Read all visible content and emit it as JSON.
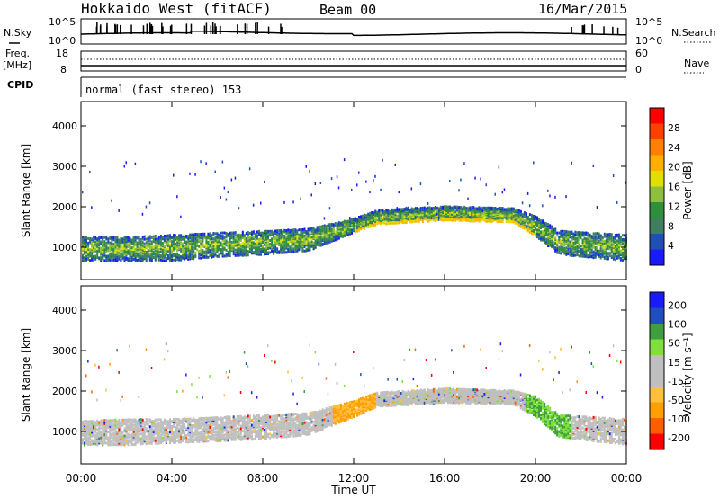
{
  "header": {
    "title": "Hokkaido West (fitACF)",
    "beam": "Beam 00",
    "date": "16/Mar/2015"
  },
  "noise_panel": {
    "left_label": "N.Sky",
    "right_label": "N.Search",
    "left_ticks": [
      "10^5",
      "10^0"
    ],
    "right_ticks": [
      "10^5",
      "10^0"
    ]
  },
  "freq_panel": {
    "left_label": "Freq.",
    "left_unit": "[MHz]",
    "right_label": "Nave",
    "left_ticks": [
      "18",
      "8"
    ],
    "right_ticks": [
      "60",
      "0"
    ]
  },
  "cpid_panel": {
    "label": "CPID",
    "mode_text": "normal (fast stereo) 153"
  },
  "colors": {
    "power": [
      "#1a1aff",
      "#1f4fb0",
      "#3f7f5f",
      "#2f8f3f",
      "#8fbf3f",
      "#dfdf00",
      "#ffaf00",
      "#ff7f00",
      "#ff3f00",
      "#ff0000"
    ],
    "velocity": [
      "#ff0000",
      "#ff5f00",
      "#ff9f00",
      "#ffbf3f",
      "#bfbfbf",
      "#bfbfbf",
      "#7fdf3f",
      "#3f9f3f",
      "#1f4fbf",
      "#1a1aff"
    ]
  },
  "chart_data": [
    {
      "type": "heatmap",
      "name": "power",
      "ylabel": "Slant Range [km]",
      "y_ticks": [
        "1000",
        "2000",
        "3000",
        "4000"
      ],
      "ylim": [
        200,
        4600
      ],
      "x_ticks": [
        "00:00",
        "04:00",
        "08:00",
        "12:00",
        "16:00",
        "20:00",
        "00:00"
      ],
      "xlim_hours": [
        0,
        24
      ],
      "colorbar": {
        "label": "Power [dB]",
        "ticks": [
          "4",
          "8",
          "12",
          "16",
          "20",
          "24",
          "28"
        ],
        "range": [
          0,
          32
        ]
      },
      "echo_band_km": [
        [
          0,
          700,
          1300
        ],
        [
          2,
          700,
          1300
        ],
        [
          4,
          700,
          1350
        ],
        [
          6,
          800,
          1400
        ],
        [
          8,
          850,
          1450
        ],
        [
          10,
          950,
          1500
        ],
        [
          12,
          1400,
          1750
        ],
        [
          13,
          1600,
          1950
        ],
        [
          16,
          1700,
          2050
        ],
        [
          19,
          1650,
          2000
        ],
        [
          20,
          1300,
          1800
        ],
        [
          21,
          850,
          1450
        ],
        [
          24,
          700,
          1350
        ]
      ]
    },
    {
      "type": "heatmap",
      "name": "velocity",
      "ylabel": "Slant Range [km]",
      "xlabel": "Time UT",
      "y_ticks": [
        "1000",
        "2000",
        "3000",
        "4000"
      ],
      "ylim": [
        200,
        4600
      ],
      "x_ticks": [
        "00:00",
        "04:00",
        "08:00",
        "12:00",
        "16:00",
        "20:00",
        "00:00"
      ],
      "xlim_hours": [
        0,
        24
      ],
      "colorbar": {
        "label": "Velocity [m s⁻¹]",
        "ticks": [
          "200",
          "100",
          "50",
          "15",
          "-15",
          "-50",
          "-100",
          "-200"
        ],
        "range": [
          -250,
          250
        ]
      },
      "echo_band_km": [
        [
          0,
          700,
          1300
        ],
        [
          2,
          700,
          1350
        ],
        [
          4,
          750,
          1350
        ],
        [
          6,
          800,
          1400
        ],
        [
          8,
          850,
          1450
        ],
        [
          10,
          950,
          1500
        ],
        [
          12,
          1400,
          1800
        ],
        [
          13,
          1650,
          2000
        ],
        [
          16,
          1750,
          2100
        ],
        [
          19,
          1700,
          2050
        ],
        [
          20,
          1400,
          1900
        ],
        [
          21,
          900,
          1450
        ],
        [
          24,
          700,
          1350
        ]
      ]
    }
  ]
}
